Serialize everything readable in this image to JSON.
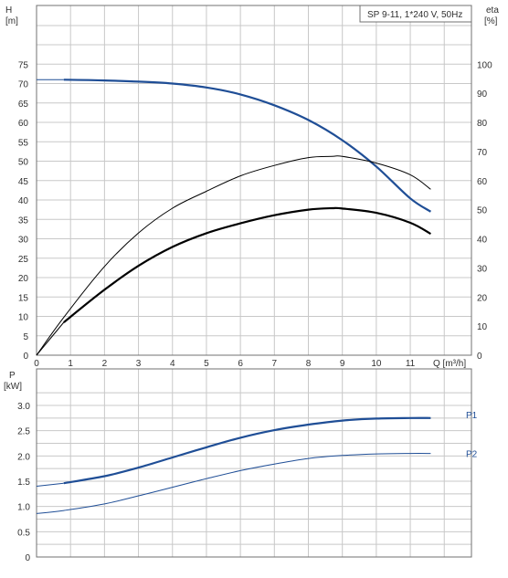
{
  "colors": {
    "grid": "#c8c8c8",
    "frame": "#707070",
    "text": "#303030",
    "blue": "#1f4e96",
    "black": "#000000",
    "p_label": "#1f4e96"
  },
  "chart_data": [
    {
      "type": "line",
      "title": "SP 9-11, 1*240 V, 50Hz",
      "ylabel_left": "H",
      "ylabel_left_unit": "[m]",
      "ylabel_right": "eta",
      "ylabel_right_unit": "[%]",
      "xlabel": "Q [m³/h]",
      "grid": true,
      "xlim": [
        0,
        12.8
      ],
      "ylim_left": [
        0,
        75
      ],
      "ylim_right": [
        0,
        100
      ],
      "x_ticks": [
        "0",
        "1",
        "2",
        "3",
        "4",
        "5",
        "6",
        "7",
        "8",
        "9",
        "10",
        "11"
      ],
      "y_ticks_left": [
        "0",
        "5",
        "10",
        "15",
        "20",
        "25",
        "30",
        "35",
        "40",
        "45",
        "50",
        "55",
        "60",
        "65",
        "70",
        "75"
      ],
      "y_ticks_right": [
        "0",
        "10",
        "20",
        "30",
        "40",
        "50",
        "60",
        "70",
        "80",
        "90",
        "100"
      ],
      "series": [
        {
          "axis": "left",
          "color": "blue",
          "points": [
            [
              0,
              71
            ],
            [
              0.8,
              71
            ],
            [
              2,
              70.8
            ],
            [
              3,
              70.5
            ],
            [
              4,
              70
            ],
            [
              5,
              69
            ],
            [
              6,
              67.2
            ],
            [
              7,
              64.4
            ],
            [
              8,
              60.6
            ],
            [
              9,
              55.4
            ],
            [
              10,
              48.6
            ],
            [
              11,
              40.4
            ],
            [
              11.6,
              37
            ]
          ]
        },
        {
          "axis": "right",
          "color": "black",
          "points": [
            [
              0,
              0
            ],
            [
              0.8,
              13
            ],
            [
              2,
              30.5
            ],
            [
              3,
              42
            ],
            [
              4,
              50.5
            ],
            [
              5,
              56.3
            ],
            [
              6,
              61.6
            ],
            [
              7,
              65.2
            ],
            [
              8,
              67.9
            ],
            [
              8.7,
              68.3
            ],
            [
              9,
              68.3
            ],
            [
              10,
              66
            ],
            [
              11,
              62
            ],
            [
              11.6,
              57
            ]
          ]
        },
        {
          "axis": "right",
          "color": "black",
          "points": [
            [
              0,
              0
            ],
            [
              0.8,
              11.3
            ],
            [
              2,
              22.5
            ],
            [
              3,
              30.7
            ],
            [
              4,
              37.2
            ],
            [
              5,
              41.9
            ],
            [
              6,
              45.3
            ],
            [
              7,
              48.1
            ],
            [
              8,
              50
            ],
            [
              8.7,
              50.5
            ],
            [
              9,
              50.4
            ],
            [
              10,
              48.9
            ],
            [
              11,
              45.5
            ],
            [
              11.6,
              41.7
            ]
          ]
        }
      ]
    },
    {
      "type": "line",
      "ylabel": "P",
      "ylabel_unit": "[kW]",
      "grid": true,
      "xlim": [
        0,
        12.8
      ],
      "ylim": [
        0,
        3.3
      ],
      "y_ticks": [
        "0",
        "0.5",
        "1.0",
        "1.5",
        "2.0",
        "2.5",
        "3.0"
      ],
      "series": [
        {
          "name": "P1",
          "color": "blue",
          "points": [
            [
              0,
              1.4
            ],
            [
              0.8,
              1.46
            ],
            [
              2,
              1.6
            ],
            [
              3,
              1.77
            ],
            [
              4,
              1.97
            ],
            [
              5,
              2.17
            ],
            [
              6,
              2.36
            ],
            [
              7,
              2.51
            ],
            [
              8,
              2.62
            ],
            [
              9,
              2.7
            ],
            [
              10,
              2.74
            ],
            [
              11,
              2.75
            ],
            [
              11.6,
              2.75
            ]
          ]
        },
        {
          "name": "P2",
          "color": "blue",
          "points": [
            [
              0,
              0.86
            ],
            [
              0.8,
              0.92
            ],
            [
              2,
              1.05
            ],
            [
              3,
              1.21
            ],
            [
              4,
              1.38
            ],
            [
              5,
              1.55
            ],
            [
              6,
              1.71
            ],
            [
              7,
              1.84
            ],
            [
              8,
              1.95
            ],
            [
              9,
              2.01
            ],
            [
              10,
              2.04
            ],
            [
              11,
              2.05
            ],
            [
              11.6,
              2.05
            ]
          ]
        }
      ]
    }
  ]
}
